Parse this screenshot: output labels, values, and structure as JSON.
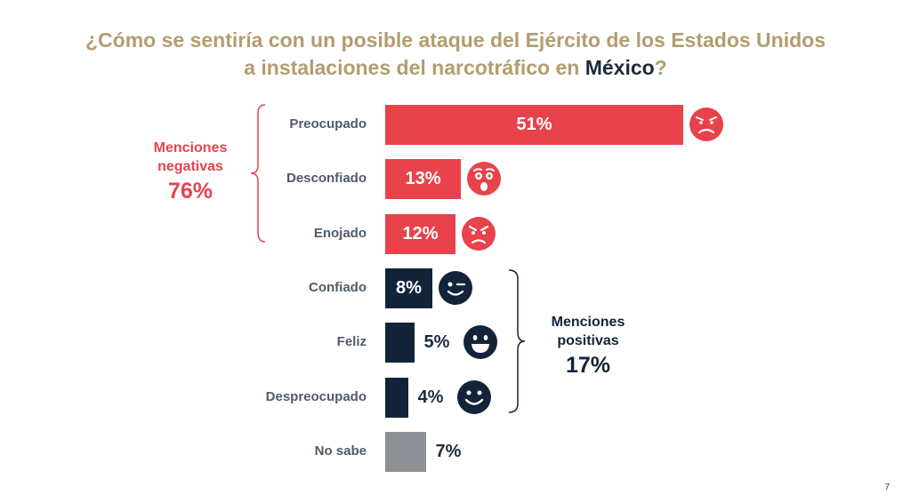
{
  "title": {
    "line1": "¿Cómo se sentiría con un posible ataque del Ejército de los Estados Unidos",
    "line2_pre": "a instalaciones del narcotráfico en ",
    "line2_highlight": "México",
    "line2_post": "?"
  },
  "colors": {
    "title": "#b29d6f",
    "highlight": "#1c2b3c",
    "negative": "#e8424c",
    "positive": "#13243a",
    "neutral": "#8c8f93"
  },
  "chart_data": {
    "type": "bar",
    "orientation": "horizontal",
    "categories": [
      "Preocupado",
      "Desconfiado",
      "Enojado",
      "Confiado",
      "Feliz",
      "Despreocupado",
      "No sabe"
    ],
    "values": [
      51,
      13,
      12,
      8,
      5,
      4,
      7
    ],
    "value_labels": [
      "51%",
      "13%",
      "12%",
      "8%",
      "5%",
      "4%",
      "7%"
    ],
    "groups": [
      "negative",
      "negative",
      "negative",
      "positive",
      "positive",
      "positive",
      "neutral"
    ],
    "faces": [
      "worried-face-icon",
      "surprised-face-icon",
      "angry-face-icon",
      "winking-face-icon",
      "grinning-face-icon",
      "smiling-face-icon",
      null
    ],
    "unit": "%"
  },
  "groups": {
    "negative": {
      "label_line1": "Menciones",
      "label_line2": "negativas",
      "total": "76%"
    },
    "positive": {
      "label_line1": "Menciones",
      "label_line2": "positivas",
      "total": "17%"
    }
  },
  "page_number": "7"
}
